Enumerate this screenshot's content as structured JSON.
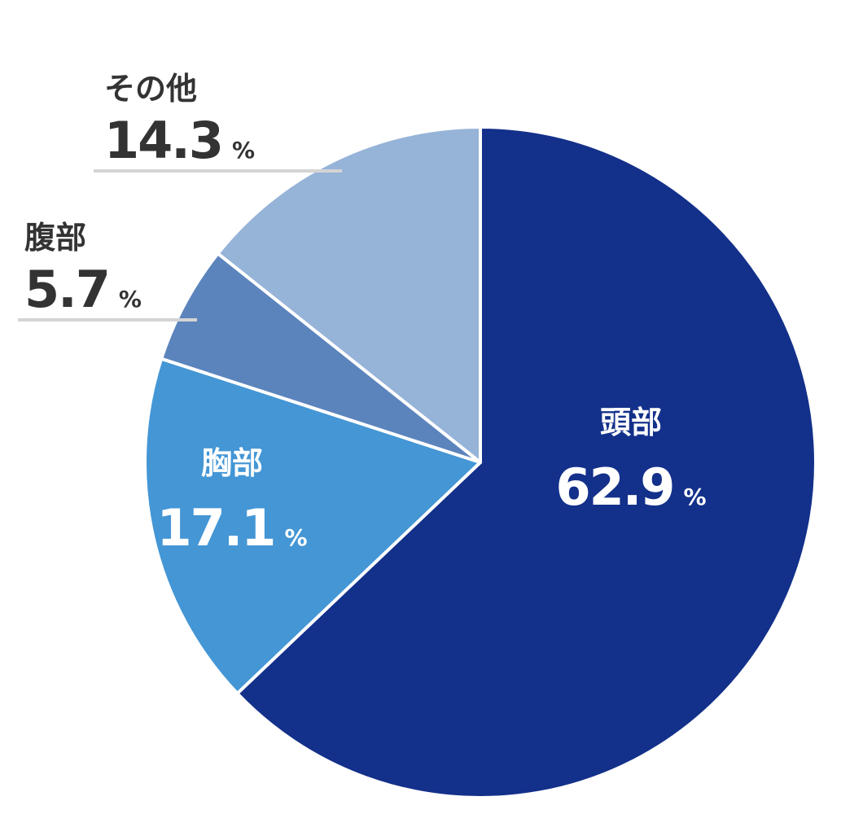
{
  "chart_data": {
    "type": "pie",
    "unit": "%",
    "slices": [
      {
        "label": "頭部",
        "value": 62.9,
        "color": "#13308a"
      },
      {
        "label": "胸部",
        "value": 17.1,
        "color": "#4496d5"
      },
      {
        "label": "腹部",
        "value": 5.7,
        "color": "#5b84bd"
      },
      {
        "label": "その他",
        "value": 14.3,
        "color": "#96b3d8"
      }
    ],
    "inside_label_color": "#ffffff",
    "outside_label_color": "#333333",
    "start": "12 o'clock",
    "direction": "clockwise"
  }
}
